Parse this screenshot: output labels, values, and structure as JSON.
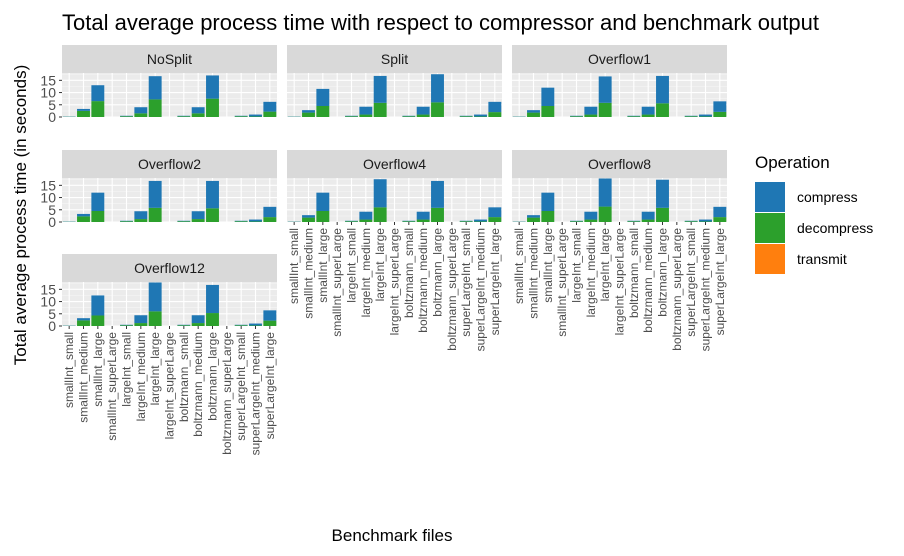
{
  "chart_data": {
    "type": "bar",
    "stacked": true,
    "faceted": true,
    "title": "Total average process time with respect to compressor and benchmark output",
    "xlabel": "Benchmark files",
    "ylabel": "Total average process time (in seconds)",
    "ylim": [
      0,
      18
    ],
    "yticks": [
      "0",
      "5",
      "10",
      "15"
    ],
    "grid": true,
    "legend": {
      "title": "Operation",
      "position": "right"
    },
    "series_styles": [
      {
        "name": "compress",
        "color": "#1f77b4"
      },
      {
        "name": "decompress",
        "color": "#2ca02c"
      },
      {
        "name": "transmit",
        "color": "#ff7f0e"
      }
    ],
    "categories": [
      "smallInt_small",
      "smallInt_medium",
      "smallInt_large",
      "smallInt_superLarge",
      "largeInt_small",
      "largeInt_medium",
      "largeInt_large",
      "largeInt_superLarge",
      "boltzmann_small",
      "boltzmann_medium",
      "boltzmann_large",
      "boltzmann_superLarge",
      "superLargeInt_small",
      "superLargeInt_medium",
      "superLargeInt_large"
    ],
    "panels": [
      {
        "name": "NoSplit",
        "compress": [
          0.1,
          0.8,
          6.5,
          0,
          0.2,
          2.5,
          9.5,
          0,
          0.2,
          2.5,
          9.5,
          0,
          0.2,
          0.8,
          4.0
        ],
        "decompress": [
          0.1,
          2.5,
          6.5,
          0,
          0.3,
          1.5,
          7.2,
          0,
          0.3,
          1.5,
          7.5,
          0,
          0.3,
          0.2,
          2.2
        ],
        "transmit": [
          0,
          0,
          0,
          0,
          0,
          0,
          0,
          0,
          0,
          0,
          0,
          0,
          0,
          0,
          0
        ]
      },
      {
        "name": "Split",
        "compress": [
          0.1,
          1.0,
          7.0,
          0,
          0.2,
          3.2,
          11.0,
          0,
          0.2,
          3.2,
          11.5,
          0,
          0.2,
          0.8,
          4.2
        ],
        "decompress": [
          0.1,
          1.8,
          4.5,
          0,
          0.3,
          1.0,
          5.8,
          0,
          0.3,
          1.0,
          6.0,
          0,
          0.3,
          0.2,
          2.0
        ],
        "transmit": [
          0,
          0,
          0,
          0,
          0,
          0,
          0,
          0,
          0,
          0,
          0,
          0,
          0,
          0,
          0
        ]
      },
      {
        "name": "Overflow1",
        "compress": [
          0.1,
          1.0,
          7.5,
          0,
          0.2,
          3.2,
          10.8,
          0,
          0.2,
          3.2,
          11.2,
          0,
          0.2,
          0.8,
          4.3
        ],
        "decompress": [
          0.1,
          1.8,
          4.5,
          0,
          0.3,
          1.0,
          5.8,
          0,
          0.3,
          1.0,
          5.6,
          0,
          0.3,
          0.2,
          2.1
        ],
        "transmit": [
          0,
          0,
          0,
          0,
          0,
          0,
          0,
          0,
          0,
          0,
          0,
          0,
          0,
          0,
          0
        ]
      },
      {
        "name": "Overflow2",
        "compress": [
          0.1,
          1.0,
          7.5,
          0,
          0.2,
          3.2,
          11.0,
          0,
          0.2,
          3.2,
          11.2,
          0,
          0.2,
          0.8,
          4.2
        ],
        "decompress": [
          0.1,
          2.3,
          4.5,
          0,
          0.3,
          1.2,
          5.8,
          0,
          0.3,
          1.2,
          5.6,
          0,
          0.3,
          0.2,
          2.0
        ],
        "transmit": [
          0,
          0,
          0,
          0,
          0,
          0,
          0,
          0,
          0,
          0,
          0,
          0,
          0,
          0,
          0
        ]
      },
      {
        "name": "Overflow4",
        "compress": [
          0.1,
          1.0,
          7.5,
          0,
          0.2,
          3.2,
          11.5,
          0,
          0.2,
          3.2,
          11.0,
          0,
          0.2,
          0.8,
          4.0
        ],
        "decompress": [
          0.1,
          1.8,
          4.5,
          0,
          0.3,
          1.0,
          6.0,
          0,
          0.3,
          1.0,
          5.8,
          0,
          0.3,
          0.2,
          2.0
        ],
        "transmit": [
          0,
          0,
          0,
          0,
          0,
          0,
          0,
          0,
          0,
          0,
          0,
          0,
          0,
          0,
          0
        ]
      },
      {
        "name": "Overflow8",
        "compress": [
          0.1,
          1.0,
          7.5,
          0,
          0.2,
          3.2,
          11.5,
          0,
          0.2,
          3.2,
          11.5,
          0,
          0.2,
          0.8,
          4.2
        ],
        "decompress": [
          0.1,
          1.8,
          4.5,
          0,
          0.3,
          1.0,
          6.3,
          0,
          0.3,
          1.0,
          5.8,
          0,
          0.3,
          0.2,
          2.0
        ],
        "transmit": [
          0,
          0,
          0,
          0,
          0,
          0,
          0,
          0,
          0,
          0,
          0,
          0,
          0,
          0,
          0
        ]
      },
      {
        "name": "Overflow12",
        "compress": [
          0.1,
          0.9,
          8.2,
          0,
          0.2,
          3.2,
          11.8,
          0,
          0.2,
          3.2,
          11.5,
          0,
          0.2,
          0.8,
          4.2
        ],
        "decompress": [
          0.1,
          2.3,
          4.3,
          0,
          0.3,
          1.2,
          6.0,
          0,
          0.3,
          1.2,
          5.3,
          0,
          0.3,
          0.2,
          2.2
        ],
        "transmit": [
          0,
          0,
          0,
          0,
          0,
          0,
          0,
          0,
          0,
          0,
          0,
          0,
          0,
          0,
          0
        ]
      }
    ]
  }
}
